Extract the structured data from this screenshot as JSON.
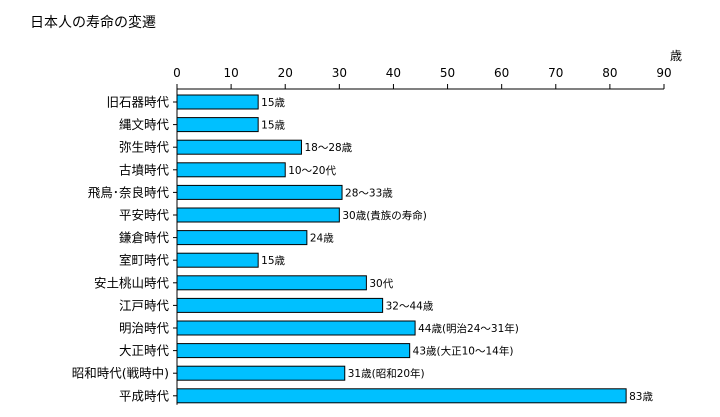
{
  "chart_data": {
    "type": "bar",
    "orientation": "horizontal",
    "title": "日本人の寿命の変遷",
    "xlabel": "歳",
    "ylabel": "",
    "xlim": [
      0,
      90
    ],
    "ticks": [
      0,
      10,
      20,
      30,
      40,
      50,
      60,
      70,
      80,
      90
    ],
    "tick_labels": [
      "0",
      "10",
      "20",
      "30",
      "40",
      "50",
      "60",
      "70",
      "80",
      "90"
    ],
    "grid": false,
    "legend": "none",
    "bar_color": "#00c0ff",
    "bar_edge_color": "#000000",
    "categories": [
      "旧石器時代",
      "縄文時代",
      "弥生時代",
      "古墳時代",
      "飛鳥･奈良時代",
      "平安時代",
      "鎌倉時代",
      "室町時代",
      "安土桃山時代",
      "江戸時代",
      "明治時代",
      "大正時代",
      "昭和時代(戦時中)",
      "平成時代"
    ],
    "values": [
      15,
      15,
      23,
      20,
      30.5,
      30,
      24,
      15,
      35,
      38,
      44,
      43,
      31,
      83
    ],
    "value_labels": [
      "15歳",
      "15歳",
      "18〜28歳",
      "10〜20代",
      "28〜33歳",
      "30歳(貴族の寿命)",
      "24歳",
      "15歳",
      "30代",
      "32〜44歳",
      "44歳(明治24〜31年)",
      "43歳(大正10〜14年)",
      "31歳(昭和20年)",
      "83歳"
    ]
  }
}
